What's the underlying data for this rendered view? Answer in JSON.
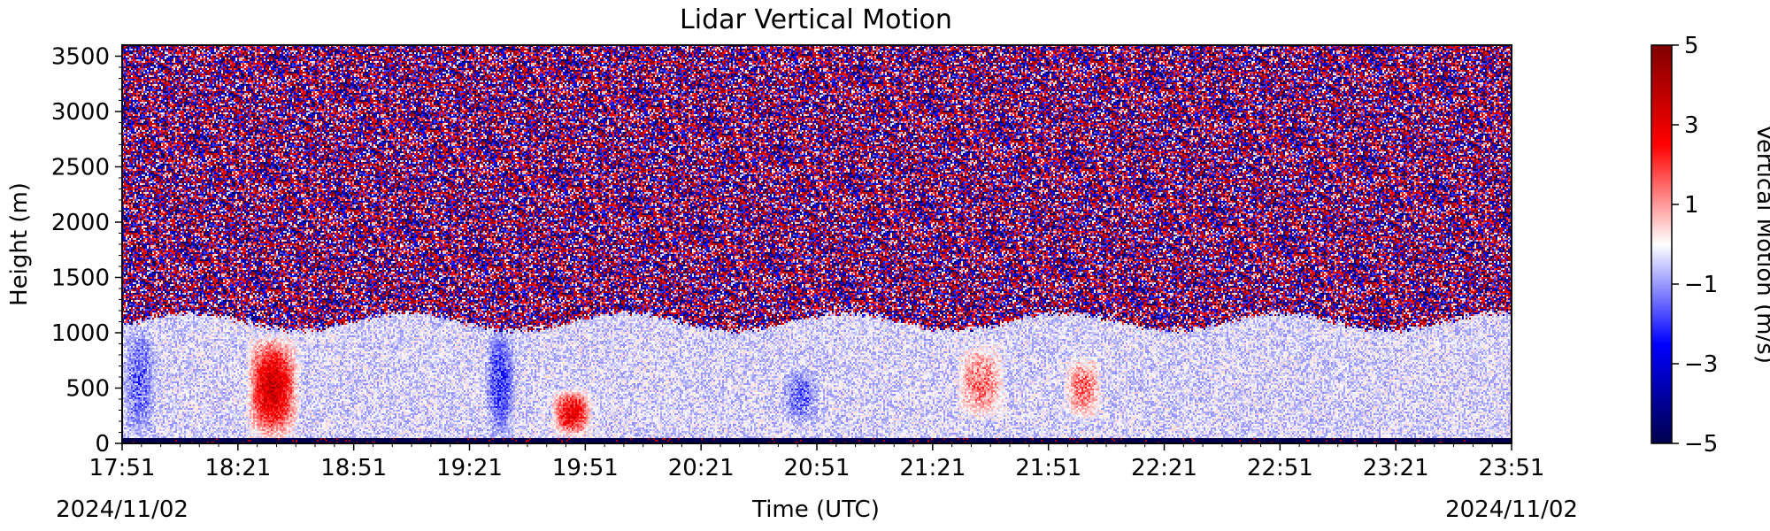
{
  "chart_data": {
    "type": "heatmap",
    "title": "Lidar Vertical Motion",
    "xlabel": "Time (UTC)",
    "ylabel": "Height (m)",
    "colorbar_label": "Vertical Motion (m/s)",
    "colormap": "seismic",
    "colormap_stops": [
      "#00004c",
      "#0000ff",
      "#ffffff",
      "#ff0000",
      "#7f0000"
    ],
    "start_date_label": "2024/11/02",
    "end_date_label": "2024/11/02",
    "x_range": [
      "17:51",
      "23:51"
    ],
    "x_ticks": [
      "17:51",
      "18:21",
      "18:51",
      "19:21",
      "19:51",
      "20:21",
      "20:51",
      "21:21",
      "21:51",
      "22:21",
      "22:51",
      "23:21",
      "23:51"
    ],
    "ylim": [
      0,
      3600
    ],
    "y_ticks": [
      0,
      500,
      1000,
      1500,
      2000,
      2500,
      3000,
      3500
    ],
    "clim": [
      -5,
      5
    ],
    "colorbar_ticks": [
      5,
      3,
      1,
      -1,
      -3,
      -5
    ],
    "colorbar_tick_labels": [
      "5",
      "3",
      "1",
      "−1",
      "−3",
      "−5"
    ],
    "boundary_layer_top_m": 1100,
    "noise_description": "Above ~1100 m values are random noise spanning the full ±5 m/s range",
    "features": [
      {
        "label": "updraft",
        "time_start": "18:23",
        "time_end": "18:37",
        "height_min": 0,
        "height_max": 1000,
        "value": 3.5
      },
      {
        "label": "updraft",
        "time_start": "19:42",
        "time_end": "19:53",
        "height_min": 50,
        "height_max": 500,
        "value": 3.0
      },
      {
        "label": "updraft",
        "time_start": "21:27",
        "time_end": "21:40",
        "height_min": 200,
        "height_max": 900,
        "value": 1.5
      },
      {
        "label": "updraft",
        "time_start": "21:55",
        "time_end": "22:05",
        "height_min": 200,
        "height_max": 800,
        "value": 1.5
      },
      {
        "label": "downdraft",
        "time_start": "17:51",
        "time_end": "18:00",
        "height_min": 0,
        "height_max": 1100,
        "value": -1.5
      },
      {
        "label": "downdraft",
        "time_start": "19:25",
        "time_end": "19:33",
        "height_min": 0,
        "height_max": 1100,
        "value": -2.0
      },
      {
        "label": "downdraft",
        "time_start": "20:42",
        "time_end": "20:52",
        "height_min": 150,
        "height_max": 700,
        "value": -1.5
      }
    ]
  }
}
